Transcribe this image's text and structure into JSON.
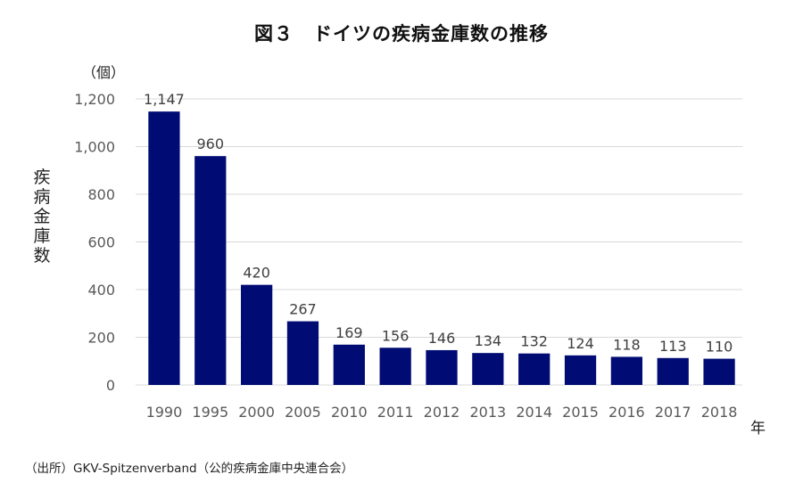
{
  "chart_data": {
    "type": "bar",
    "title": "図３　ドイツの疾病金庫数の推移",
    "xlabel": "年",
    "ylabel": "疾病金庫数",
    "yunit": "（個）",
    "categories": [
      "1990",
      "1995",
      "2000",
      "2005",
      "2010",
      "2011",
      "2012",
      "2013",
      "2014",
      "2015",
      "2016",
      "2017",
      "2018"
    ],
    "values": [
      1147,
      960,
      420,
      267,
      169,
      156,
      146,
      134,
      132,
      124,
      118,
      113,
      110
    ],
    "data_labels": [
      "1,147",
      "960",
      "420",
      "267",
      "169",
      "156",
      "146",
      "134",
      "132",
      "124",
      "118",
      "113",
      "110"
    ],
    "ylim": [
      0,
      1200
    ],
    "yticks": [
      0,
      200,
      400,
      600,
      800,
      1000,
      1200
    ],
    "ytick_labels": [
      "0",
      "200",
      "400",
      "600",
      "800",
      "1,000",
      "1,200"
    ],
    "grid": true,
    "legend": "none",
    "bar_color": "#000c73",
    "grid_color": "#d9d9d9"
  },
  "source": "（出所）GKV-Spitzenverband（公的疾病金庫中央連合会）"
}
